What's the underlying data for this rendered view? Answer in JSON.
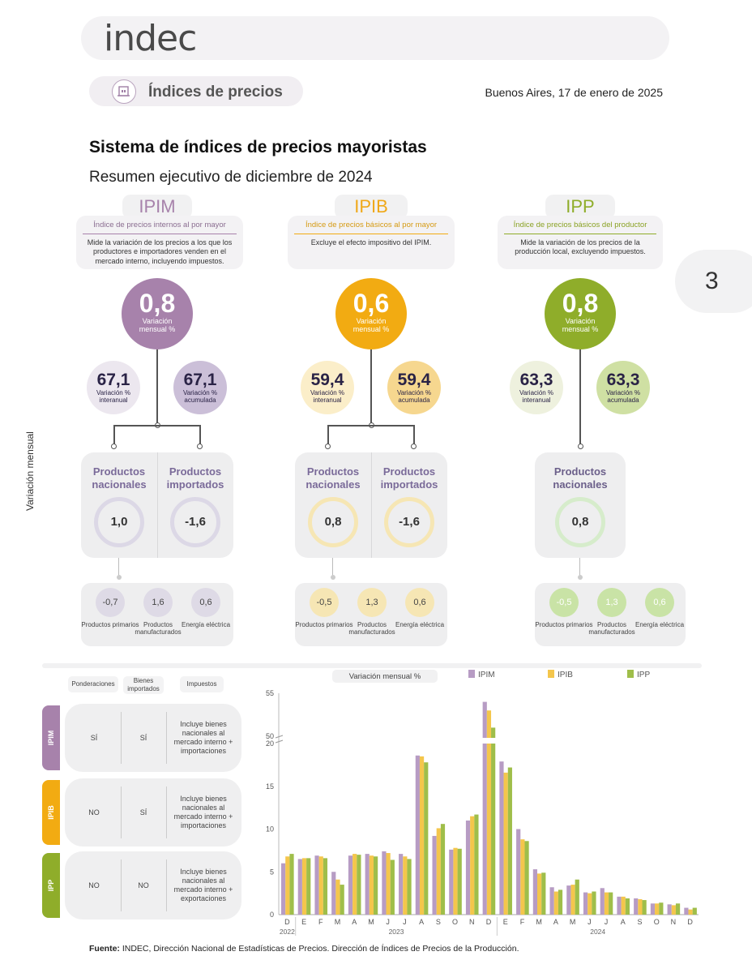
{
  "header": {
    "logo": "indec",
    "section_title": "Índices de precios",
    "date": "Buenos Aires, 17 de enero de 2025",
    "page_number": "3"
  },
  "title": "Sistema de índices de precios mayoristas",
  "subtitle": "Resumen ejecutivo de diciembre de 2024",
  "side_label": "Variación mensual",
  "colors": {
    "ipim": "#a782ab",
    "ipib": "#f2ab12",
    "ipp": "#8fad2a"
  },
  "indices": [
    {
      "name": "IPIM",
      "def_title": "Índice de precios internos al por mayor",
      "def_text": "Mide la variación de los precios a los que los productores e importadores venden en el mercado interno, incluyendo impuestos.",
      "monthly": "0,8",
      "monthly_label": "Variación mensual %",
      "yoy": "67,1",
      "yoy_label": "Variación % interanual",
      "cumulative": "67,1",
      "cumulative_label": "Variación % acumulada",
      "products": [
        {
          "label": "Productos nacionales",
          "value": "1,0"
        },
        {
          "label": "Productos importados",
          "value": "-1,6"
        }
      ],
      "sub": [
        {
          "label": "Productos primarios",
          "value": "-0,7"
        },
        {
          "label": "Productos manufacturados",
          "value": "1,6"
        },
        {
          "label": "Energía eléctrica",
          "value": "0,6"
        }
      ]
    },
    {
      "name": "IPIB",
      "def_title": "Índice de precios básicos al por mayor",
      "def_text": "Excluye el efecto impositivo del IPIM.",
      "monthly": "0,6",
      "monthly_label": "Variación mensual %",
      "yoy": "59,4",
      "yoy_label": "Variación % interanual",
      "cumulative": "59,4",
      "cumulative_label": "Variación % acumulada",
      "products": [
        {
          "label": "Productos nacionales",
          "value": "0,8"
        },
        {
          "label": "Productos importados",
          "value": "-1,6"
        }
      ],
      "sub": [
        {
          "label": "Productos primarios",
          "value": "-0,5"
        },
        {
          "label": "Productos manufacturados",
          "value": "1,3"
        },
        {
          "label": "Energía eléctrica",
          "value": "0,6"
        }
      ]
    },
    {
      "name": "IPP",
      "def_title": "Índice de precios básicos del productor",
      "def_text": "Mide la variación de los precios de la producción local, excluyendo impuestos.",
      "monthly": "0,8",
      "monthly_label": "Variación mensual %",
      "yoy": "63,3",
      "yoy_label": "Variación % interanual",
      "cumulative": "63,3",
      "cumulative_label": "Variación % acumulada",
      "products": [
        {
          "label": "Productos nacionales",
          "value": "0,8"
        }
      ],
      "sub": [
        {
          "label": "Productos primarios",
          "value": "-0,5"
        },
        {
          "label": "Productos manufacturados",
          "value": "1,3"
        },
        {
          "label": "Energía eléctrica",
          "value": "0,6"
        }
      ]
    }
  ],
  "table": {
    "headers": [
      "Ponderaciones",
      "Bienes importados",
      "Impuestos"
    ],
    "rows": [
      {
        "name": "IPIM",
        "ponderaciones": "SÍ",
        "importados": "SÍ",
        "impuestos": "Incluye bienes nacionales al mercado interno + importaciones"
      },
      {
        "name": "IPIB",
        "ponderaciones": "NO",
        "importados": "SÍ",
        "impuestos": "Incluye bienes nacionales al mercado interno + importaciones"
      },
      {
        "name": "IPP",
        "ponderaciones": "NO",
        "importados": "NO",
        "impuestos": "Incluye bienes nacionales al mercado interno + exportaciones"
      }
    ]
  },
  "chart_data": {
    "type": "bar",
    "title": "Variación mensual %",
    "categories": [
      "D",
      "E",
      "F",
      "M",
      "A",
      "M",
      "J",
      "J",
      "A",
      "S",
      "O",
      "N",
      "D",
      "E",
      "F",
      "M",
      "A",
      "M",
      "J",
      "J",
      "A",
      "S",
      "O",
      "N",
      "D"
    ],
    "year_labels": [
      "2022",
      "2023",
      "2024"
    ],
    "y_ticks": [
      "0",
      "5",
      "10",
      "15",
      "20",
      "50",
      "55"
    ],
    "y_axis_break": [
      20,
      50
    ],
    "ylim": [
      0,
      55
    ],
    "series": [
      {
        "name": "IPIM",
        "color": "#b79cc4",
        "values": [
          6.0,
          6.5,
          6.9,
          5.0,
          6.9,
          7.1,
          7.4,
          7.1,
          18.6,
          9.2,
          7.6,
          11.0,
          54.0,
          17.9,
          10.0,
          5.3,
          3.2,
          3.4,
          2.6,
          3.1,
          2.1,
          1.9,
          1.3,
          1.2,
          0.8
        ]
      },
      {
        "name": "IPIB",
        "color": "#f4c64c",
        "values": [
          6.8,
          6.6,
          6.8,
          4.1,
          7.1,
          6.9,
          7.2,
          6.8,
          18.5,
          10.1,
          7.8,
          11.5,
          53.0,
          16.6,
          8.8,
          4.8,
          2.7,
          3.5,
          2.5,
          2.6,
          2.1,
          1.8,
          1.3,
          1.1,
          0.6
        ]
      },
      {
        "name": "IPP",
        "color": "#9fbe4a",
        "values": [
          7.1,
          6.6,
          6.6,
          3.5,
          7.0,
          6.8,
          6.4,
          6.5,
          17.8,
          10.6,
          7.7,
          11.7,
          51.0,
          17.2,
          8.6,
          4.9,
          2.9,
          4.1,
          2.7,
          2.6,
          1.9,
          1.7,
          1.4,
          1.3,
          0.8
        ]
      }
    ]
  },
  "footer": {
    "bold": "Fuente:",
    "text": " INDEC, Dirección Nacional de Estadísticas de Precios. Dirección de Índices de Precios de la Producción."
  }
}
